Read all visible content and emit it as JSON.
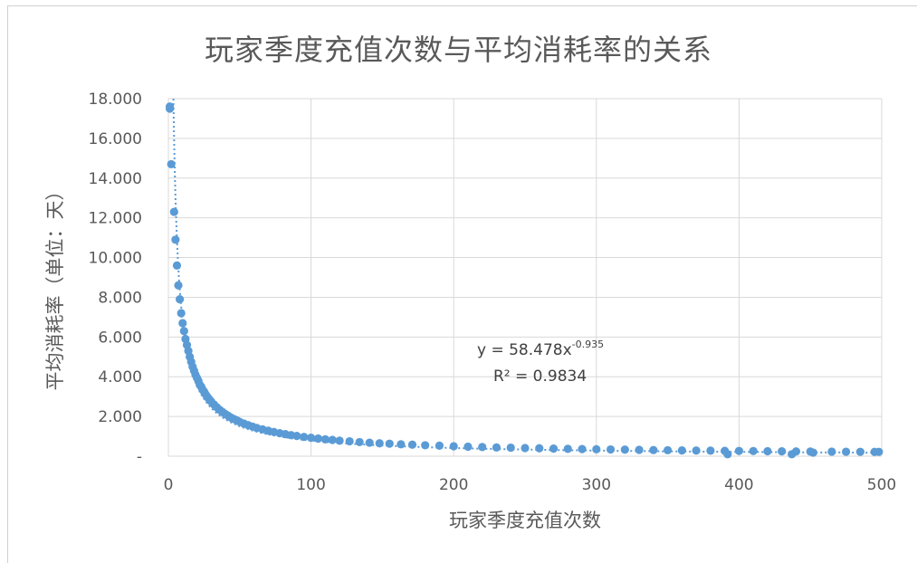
{
  "chart_data": {
    "type": "scatter",
    "title": "玩家季度充值次数与平均消耗率的关系",
    "xlabel": "玩家季度充值次数",
    "ylabel": "平均消耗率（单位：天）",
    "xlim": [
      0,
      500
    ],
    "ylim": [
      0,
      18
    ],
    "x_ticks": [
      "0",
      "100",
      "200",
      "300",
      "400",
      "500"
    ],
    "y_ticks": [
      "-",
      "2.000",
      "4.000",
      "6.000",
      "8.000",
      "10.000",
      "12.000",
      "14.000",
      "16.000",
      "18.000"
    ],
    "grid": true,
    "colors": {
      "points": "#5b9bd5",
      "grid": "#d9d9d9",
      "text": "#595959"
    },
    "trendline": {
      "type": "power",
      "a": 58.478,
      "b": -0.935,
      "equation_prefix": "y = 58.478x",
      "equation_exponent": "-0.935",
      "r2_text": "R² = 0.9834"
    },
    "series": [
      {
        "points": [
          [
            1,
            17.6
          ],
          [
            1,
            17.5
          ],
          [
            2,
            14.7
          ],
          [
            4,
            12.3
          ],
          [
            5,
            10.9
          ],
          [
            6,
            9.6
          ],
          [
            7,
            8.6
          ],
          [
            8,
            7.9
          ],
          [
            9,
            7.2
          ],
          [
            10,
            6.7
          ],
          [
            11,
            6.3
          ],
          [
            12,
            5.9
          ],
          [
            13,
            5.6
          ],
          [
            14,
            5.3
          ],
          [
            15,
            5.0
          ],
          [
            16,
            4.75
          ],
          [
            17,
            4.5
          ],
          [
            18,
            4.3
          ],
          [
            19,
            4.1
          ],
          [
            20,
            3.95
          ],
          [
            21,
            3.8
          ],
          [
            22,
            3.6
          ],
          [
            23,
            3.5
          ],
          [
            24,
            3.35
          ],
          [
            25,
            3.25
          ],
          [
            26,
            3.12
          ],
          [
            27,
            3.02
          ],
          [
            28,
            2.92
          ],
          [
            29,
            2.83
          ],
          [
            30,
            2.75
          ],
          [
            32,
            2.6
          ],
          [
            34,
            2.46
          ],
          [
            36,
            2.33
          ],
          [
            38,
            2.22
          ],
          [
            40,
            2.12
          ],
          [
            42,
            2.03
          ],
          [
            44,
            1.94
          ],
          [
            46,
            1.87
          ],
          [
            48,
            1.8
          ],
          [
            50,
            1.73
          ],
          [
            53,
            1.64
          ],
          [
            56,
            1.56
          ],
          [
            59,
            1.49
          ],
          [
            62,
            1.42
          ],
          [
            66,
            1.35
          ],
          [
            70,
            1.28
          ],
          [
            74,
            1.22
          ],
          [
            78,
            1.16
          ],
          [
            82,
            1.11
          ],
          [
            86,
            1.06
          ],
          [
            90,
            1.02
          ],
          [
            95,
            0.97
          ],
          [
            100,
            0.93
          ],
          [
            105,
            0.89
          ],
          [
            110,
            0.85
          ],
          [
            115,
            0.82
          ],
          [
            120,
            0.78
          ],
          [
            127,
            0.75
          ],
          [
            134,
            0.71
          ],
          [
            141,
            0.68
          ],
          [
            148,
            0.65
          ],
          [
            155,
            0.63
          ],
          [
            163,
            0.6
          ],
          [
            171,
            0.58
          ],
          [
            180,
            0.55
          ],
          [
            190,
            0.53
          ],
          [
            200,
            0.5
          ],
          [
            210,
            0.48
          ],
          [
            220,
            0.46
          ],
          [
            230,
            0.44
          ],
          [
            240,
            0.43
          ],
          [
            250,
            0.41
          ],
          [
            260,
            0.4
          ],
          [
            270,
            0.38
          ],
          [
            280,
            0.37
          ],
          [
            290,
            0.36
          ],
          [
            300,
            0.35
          ],
          [
            310,
            0.34
          ],
          [
            320,
            0.33
          ],
          [
            330,
            0.32
          ],
          [
            340,
            0.31
          ],
          [
            350,
            0.3
          ],
          [
            360,
            0.29
          ],
          [
            370,
            0.285
          ],
          [
            380,
            0.28
          ],
          [
            390,
            0.27
          ],
          [
            400,
            0.265
          ],
          [
            410,
            0.26
          ],
          [
            420,
            0.25
          ],
          [
            430,
            0.245
          ],
          [
            440,
            0.24
          ],
          [
            450,
            0.235
          ],
          [
            465,
            0.23
          ],
          [
            475,
            0.225
          ],
          [
            485,
            0.22
          ],
          [
            495,
            0.215
          ],
          [
            498,
            0.22
          ],
          [
            392,
            0.1
          ],
          [
            452,
            0.18
          ],
          [
            437,
            0.1
          ]
        ]
      }
    ]
  }
}
